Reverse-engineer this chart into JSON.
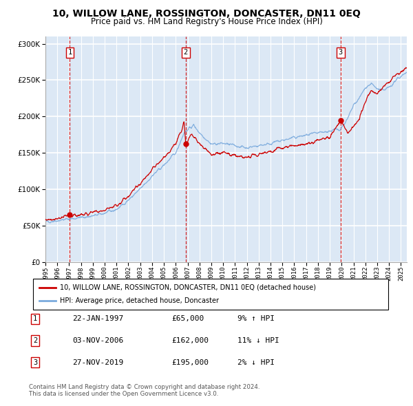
{
  "title": "10, WILLOW LANE, ROSSINGTON, DONCASTER, DN11 0EQ",
  "subtitle": "Price paid vs. HM Land Registry's House Price Index (HPI)",
  "transactions": [
    {
      "num": 1,
      "date_str": "22-JAN-1997",
      "year": 1997.06,
      "price": 65000,
      "hpi_pct": "9% ↑ HPI"
    },
    {
      "num": 2,
      "date_str": "03-NOV-2006",
      "year": 2006.84,
      "price": 162000,
      "hpi_pct": "11% ↓ HPI"
    },
    {
      "num": 3,
      "date_str": "27-NOV-2019",
      "year": 2019.91,
      "price": 195000,
      "hpi_pct": "2% ↓ HPI"
    }
  ],
  "legend_line1": "10, WILLOW LANE, ROSSINGTON, DONCASTER, DN11 0EQ (detached house)",
  "legend_line2": "HPI: Average price, detached house, Doncaster",
  "footer": "Contains HM Land Registry data © Crown copyright and database right 2024.\nThis data is licensed under the Open Government Licence v3.0.",
  "xmin": 1995,
  "xmax": 2025.5,
  "ymin": 0,
  "ymax": 310000,
  "yticks": [
    0,
    50000,
    100000,
    150000,
    200000,
    250000,
    300000
  ],
  "background_color": "#dce8f5",
  "grid_color": "#ffffff",
  "sale_color": "#cc0000",
  "hpi_color": "#7aaadd",
  "dashed_color": "#cc0000",
  "title_fontsize": 10,
  "subtitle_fontsize": 8.5
}
